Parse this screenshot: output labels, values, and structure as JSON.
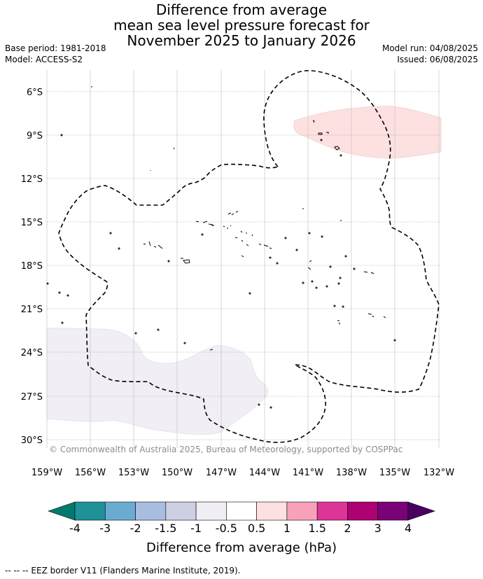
{
  "title": {
    "line1": "Difference from average",
    "line2": "mean sea level pressure forecast for",
    "line3": "November 2025 to January 2026"
  },
  "meta": {
    "base_period": "Base period: 1981-2018",
    "model": "Model: ACCESS-S2",
    "model_run": "Model run: 04/08/2025",
    "issued": "Issued: 06/08/2025"
  },
  "map": {
    "latitudes": [
      "6°S",
      "9°S",
      "12°S",
      "15°S",
      "18°S",
      "21°S",
      "24°S",
      "27°S",
      "30°S"
    ],
    "longitudes": [
      "159°W",
      "156°W",
      "153°W",
      "150°W",
      "147°W",
      "144°W",
      "141°W",
      "138°W",
      "135°W",
      "132°W"
    ],
    "copyright": "© Commonwealth of Australia 2025, Bureau of Meteorology, supported by COSPPac",
    "anomaly_regions": [
      {
        "name": "positive-anomaly-north-east",
        "category": "0.5 to 1",
        "color": "#fde0e0"
      },
      {
        "name": "negative-anomaly-south-west",
        "category": "-1 to -0.5",
        "color": "#f2eef5"
      }
    ]
  },
  "colorbar": {
    "title": "Difference from average (hPa)",
    "ticks": [
      "-4",
      "-3",
      "-2",
      "-1.5",
      "-1",
      "-0.5",
      "0.5",
      "1",
      "1.5",
      "2",
      "3",
      "4"
    ],
    "colors": [
      "#007a6c",
      "#1e9199",
      "#6aabd2",
      "#a8bddf",
      "#cfcfe4",
      "#f2eef5",
      "#ffffff",
      "#fde0e0",
      "#f7a1ba",
      "#dd3597",
      "#ad0174",
      "#7b0177",
      "#4a0060"
    ]
  },
  "footnote": "--  --  -- EEZ border V11 (Flanders Marine Institute, 2019)."
}
